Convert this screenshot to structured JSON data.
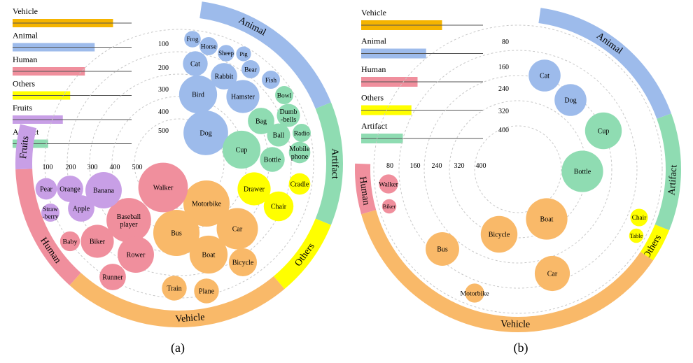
{
  "colors": {
    "Vehicle": "#f9b969",
    "Animal": "#9dbbeb",
    "Human": "#f08f9d",
    "Others": "#ffff00",
    "Fruits": "#c89fe6",
    "Artifact": "#8fdcb2",
    "Vehicle_bar": "#f5b400",
    "axis_line": "#555555",
    "grid": "#c8c8c8"
  },
  "chart_data": [
    {
      "type": "bubble-radial",
      "caption": "(a)",
      "legend_bars": [
        {
          "name": "Vehicle",
          "value": 0.82
        },
        {
          "name": "Animal",
          "value": 0.67
        },
        {
          "name": "Human",
          "value": 0.59
        },
        {
          "name": "Others",
          "value": 0.47
        },
        {
          "name": "Fruits",
          "value": 0.41
        },
        {
          "name": "Artifact",
          "value": 0.29
        }
      ],
      "ring_ticks_up": [
        "100",
        "200",
        "300",
        "400",
        "500"
      ],
      "ring_ticks_left": [
        "100",
        "200",
        "300",
        "400",
        "500"
      ],
      "arcs": [
        {
          "name": "Animal",
          "from": 8,
          "to": 68
        },
        {
          "name": "Artifact",
          "from": 68,
          "to": 112
        },
        {
          "name": "Others",
          "from": 112,
          "to": 140
        },
        {
          "name": "Vehicle",
          "from": 140,
          "to": 222
        },
        {
          "name": "Human",
          "from": 222,
          "to": 268
        },
        {
          "name": "Fruits",
          "from": 268,
          "to": 284
        }
      ],
      "bubbles": [
        {
          "label": "Frog",
          "cat": "Animal",
          "size": 1
        },
        {
          "label": "Horse",
          "cat": "Animal",
          "size": 1.1
        },
        {
          "label": "Sheep",
          "cat": "Animal",
          "size": 1
        },
        {
          "label": "Pig",
          "cat": "Animal",
          "size": 0.9
        },
        {
          "label": "Cat",
          "cat": "Animal",
          "size": 1.5
        },
        {
          "label": "Rabbit",
          "cat": "Animal",
          "size": 1.6
        },
        {
          "label": "Bear",
          "cat": "Animal",
          "size": 1.1
        },
        {
          "label": "Fish",
          "cat": "Animal",
          "size": 1.1
        },
        {
          "label": "Bird",
          "cat": "Animal",
          "size": 2.3
        },
        {
          "label": "Hamster",
          "cat": "Animal",
          "size": 2.0
        },
        {
          "label": "Dog",
          "cat": "Animal",
          "size": 2.7
        },
        {
          "label": "Bowl",
          "cat": "Artifact",
          "size": 1.1
        },
        {
          "label": "Bag",
          "cat": "Artifact",
          "size": 1.6
        },
        {
          "label": "Dumb-bells",
          "cat": "Artifact",
          "size": 1.4
        },
        {
          "label": "Ball",
          "cat": "Artifact",
          "size": 1.4
        },
        {
          "label": "Radio",
          "cat": "Artifact",
          "size": 1.1
        },
        {
          "label": "Cup",
          "cat": "Artifact",
          "size": 2.3
        },
        {
          "label": "Bottle",
          "cat": "Artifact",
          "size": 1.5
        },
        {
          "label": "Mobile phone",
          "cat": "Artifact",
          "size": 1.3
        },
        {
          "label": "Drawer",
          "cat": "Others",
          "size": 2.0
        },
        {
          "label": "Cradle",
          "cat": "Others",
          "size": 1.3
        },
        {
          "label": "Chair",
          "cat": "Others",
          "size": 1.8
        },
        {
          "label": "Motorbike",
          "cat": "Vehicle",
          "size": 2.8
        },
        {
          "label": "Bus",
          "cat": "Vehicle",
          "size": 2.8
        },
        {
          "label": "Car",
          "cat": "Vehicle",
          "size": 2.5
        },
        {
          "label": "Boat",
          "cat": "Vehicle",
          "size": 2.3
        },
        {
          "label": "Bicycle",
          "cat": "Vehicle",
          "size": 1.7
        },
        {
          "label": "Train",
          "cat": "Vehicle",
          "size": 1.5
        },
        {
          "label": "Plane",
          "cat": "Vehicle",
          "size": 1.5
        },
        {
          "label": "Walker",
          "cat": "Human",
          "size": 3.0
        },
        {
          "label": "Baseball player",
          "cat": "Human",
          "size": 2.7
        },
        {
          "label": "Biker",
          "cat": "Human",
          "size": 2.0
        },
        {
          "label": "Rower",
          "cat": "Human",
          "size": 2.2
        },
        {
          "label": "Baby",
          "cat": "Human",
          "size": 1.2
        },
        {
          "label": "Runner",
          "cat": "Human",
          "size": 1.6
        },
        {
          "label": "Pear",
          "cat": "Fruits",
          "size": 1.3
        },
        {
          "label": "Orange",
          "cat": "Fruits",
          "size": 1.6
        },
        {
          "label": "Banana",
          "cat": "Fruits",
          "size": 2.2
        },
        {
          "label": "Apple",
          "cat": "Fruits",
          "size": 1.6
        },
        {
          "label": "Straw-berry",
          "cat": "Fruits",
          "size": 1.1
        }
      ]
    },
    {
      "type": "bubble-radial",
      "caption": "(b)",
      "legend_bars": [
        {
          "name": "Vehicle",
          "value": 0.66
        },
        {
          "name": "Animal",
          "value": 0.53
        },
        {
          "name": "Human",
          "value": 0.46
        },
        {
          "name": "Others",
          "value": 0.41
        },
        {
          "name": "Artifact",
          "value": 0.34
        }
      ],
      "ring_ticks_up": [
        "80",
        "160",
        "240",
        "320",
        "400"
      ],
      "ring_ticks_left": [
        "80",
        "160",
        "240",
        "320",
        "400"
      ],
      "arcs": [
        {
          "name": "Animal",
          "from": 8,
          "to": 70
        },
        {
          "name": "Artifact",
          "from": 70,
          "to": 112
        },
        {
          "name": "Others",
          "from": 112,
          "to": 124
        },
        {
          "name": "Vehicle",
          "from": 124,
          "to": 254
        },
        {
          "name": "Human",
          "from": 254,
          "to": 272
        }
      ],
      "bubbles": [
        {
          "label": "Cat",
          "cat": "Animal",
          "size": 2.0
        },
        {
          "label": "Dog",
          "cat": "Animal",
          "size": 2.0
        },
        {
          "label": "Cup",
          "cat": "Artifact",
          "size": 2.3
        },
        {
          "label": "Bottle",
          "cat": "Artifact",
          "size": 2.6
        },
        {
          "label": "Chair",
          "cat": "Others",
          "size": 1.1
        },
        {
          "label": "Table",
          "cat": "Others",
          "size": 0.9
        },
        {
          "label": "Boat",
          "cat": "Vehicle",
          "size": 2.6
        },
        {
          "label": "Bicycle",
          "cat": "Vehicle",
          "size": 2.3
        },
        {
          "label": "Bus",
          "cat": "Vehicle",
          "size": 2.1
        },
        {
          "label": "Car",
          "cat": "Vehicle",
          "size": 2.2
        },
        {
          "label": "Motorbike",
          "cat": "Vehicle",
          "size": 1.2
        },
        {
          "label": "Walker",
          "cat": "Human",
          "size": 1.2
        },
        {
          "label": "Biker",
          "cat": "Human",
          "size": 0.9
        }
      ]
    }
  ]
}
